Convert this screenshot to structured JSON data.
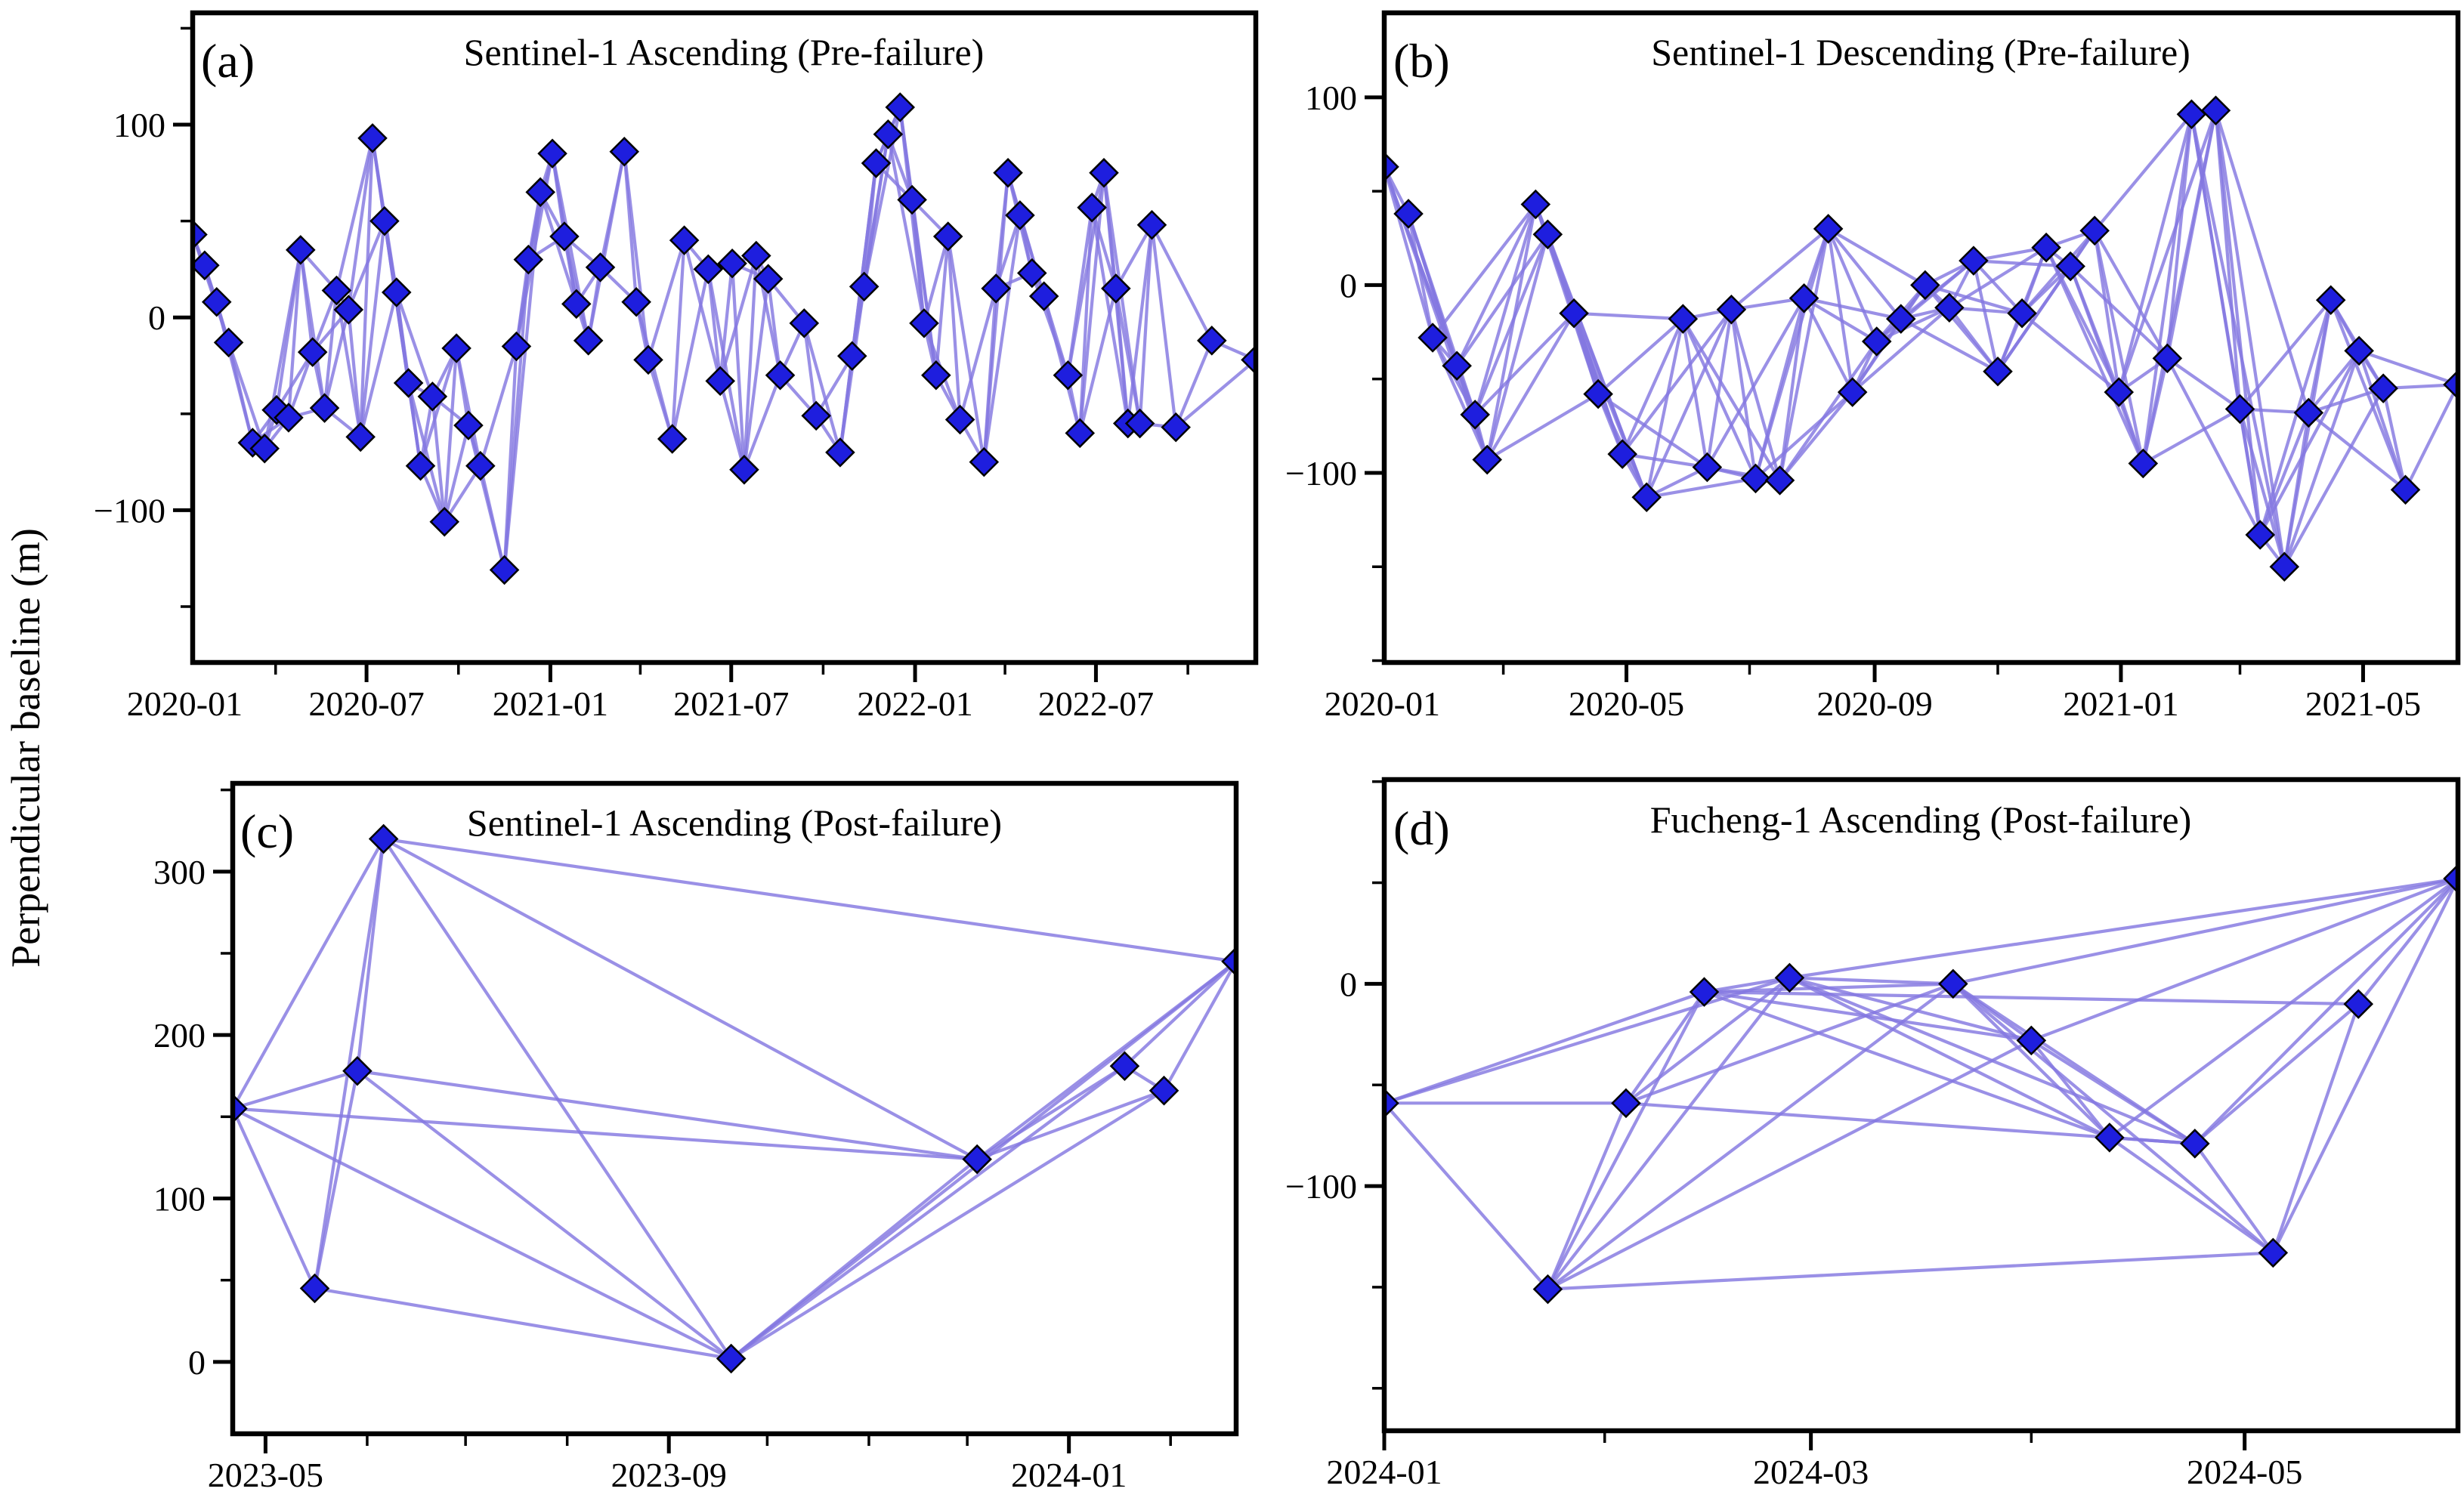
{
  "figure": {
    "y_axis_label": "Perpendicular baseline (m)"
  },
  "colors": {
    "background": "#ffffff",
    "frame": "#000000",
    "text": "#000000",
    "edge_line": "#8478e0",
    "marker_fill": "#1e1ede",
    "marker_edge": "#000000"
  },
  "chart_data": [
    {
      "type": "scatter",
      "panel_label": "(a)",
      "title": "Sentinel-1 Ascending (Pre-failure)",
      "x_range": [
        "2020-01-09",
        "2022-12-08"
      ],
      "y_range": [
        -179,
        158
      ],
      "x_ticks": [
        {
          "date": "2020-01-01",
          "label": "2020-01"
        },
        {
          "date": "2020-07-01",
          "label": "2020-07"
        },
        {
          "date": "2021-01-01",
          "label": "2021-01"
        },
        {
          "date": "2021-07-01",
          "label": "2021-07"
        },
        {
          "date": "2022-01-01",
          "label": "2022-01"
        },
        {
          "date": "2022-07-01",
          "label": "2022-07"
        }
      ],
      "x_minor_step_months": 3,
      "y_ticks": [
        100,
        0,
        -100
      ],
      "y_minor_step": 50,
      "edge_max_days": 40,
      "edge_min_next": 2,
      "points": [
        [
          "2020-01-09",
          43
        ],
        [
          "2020-01-21",
          27
        ],
        [
          "2020-02-02",
          8
        ],
        [
          "2020-02-14",
          -13
        ],
        [
          "2020-03-09",
          -65
        ],
        [
          "2020-03-21",
          -68
        ],
        [
          "2020-04-02",
          -48
        ],
        [
          "2020-04-14",
          -52
        ],
        [
          "2020-04-26",
          35
        ],
        [
          "2020-05-08",
          -18
        ],
        [
          "2020-05-20",
          -47
        ],
        [
          "2020-06-01",
          14
        ],
        [
          "2020-06-13",
          4
        ],
        [
          "2020-06-25",
          -62
        ],
        [
          "2020-07-07",
          93
        ],
        [
          "2020-07-19",
          50
        ],
        [
          "2020-07-31",
          13
        ],
        [
          "2020-08-12",
          -34
        ],
        [
          "2020-08-24",
          -77
        ],
        [
          "2020-09-05",
          -41
        ],
        [
          "2020-09-17",
          -106
        ],
        [
          "2020-09-29",
          -16
        ],
        [
          "2020-10-11",
          -56
        ],
        [
          "2020-10-23",
          -77
        ],
        [
          "2020-11-16",
          -131
        ],
        [
          "2020-11-28",
          -15
        ],
        [
          "2020-12-10",
          30
        ],
        [
          "2020-12-22",
          65
        ],
        [
          "2021-01-03",
          85
        ],
        [
          "2021-01-15",
          42
        ],
        [
          "2021-01-27",
          7
        ],
        [
          "2021-02-08",
          -12
        ],
        [
          "2021-02-20",
          26
        ],
        [
          "2021-03-16",
          86
        ],
        [
          "2021-03-28",
          8
        ],
        [
          "2021-04-09",
          -22
        ],
        [
          "2021-05-03",
          -63
        ],
        [
          "2021-05-15",
          40
        ],
        [
          "2021-06-08",
          25
        ],
        [
          "2021-06-20",
          -33
        ],
        [
          "2021-07-02",
          28
        ],
        [
          "2021-07-14",
          -79
        ],
        [
          "2021-07-26",
          32
        ],
        [
          "2021-08-07",
          20
        ],
        [
          "2021-08-19",
          -30
        ],
        [
          "2021-09-12",
          -3
        ],
        [
          "2021-09-24",
          -51
        ],
        [
          "2021-10-18",
          -70
        ],
        [
          "2021-10-30",
          -20
        ],
        [
          "2021-11-11",
          16
        ],
        [
          "2021-11-23",
          80
        ],
        [
          "2021-12-05",
          95
        ],
        [
          "2021-12-17",
          109
        ],
        [
          "2021-12-29",
          61
        ],
        [
          "2022-01-10",
          -3
        ],
        [
          "2022-01-22",
          -30
        ],
        [
          "2022-02-03",
          42
        ],
        [
          "2022-02-15",
          -53
        ],
        [
          "2022-03-11",
          -75
        ],
        [
          "2022-03-23",
          15
        ],
        [
          "2022-04-04",
          75
        ],
        [
          "2022-04-16",
          53
        ],
        [
          "2022-04-28",
          23
        ],
        [
          "2022-05-10",
          11
        ],
        [
          "2022-06-03",
          -30
        ],
        [
          "2022-06-15",
          -60
        ],
        [
          "2022-06-27",
          57
        ],
        [
          "2022-07-09",
          75
        ],
        [
          "2022-07-21",
          15
        ],
        [
          "2022-08-02",
          -55
        ],
        [
          "2022-08-14",
          -55
        ],
        [
          "2022-08-26",
          48
        ],
        [
          "2022-09-19",
          -57
        ],
        [
          "2022-10-25",
          -12
        ],
        [
          "2022-12-08",
          -22
        ]
      ]
    },
    {
      "type": "scatter",
      "panel_label": "(b)",
      "title": "Sentinel-1 Descending (Pre-failure)",
      "x_range": [
        "2020-01-02",
        "2021-06-17"
      ],
      "y_range": [
        -201,
        145
      ],
      "x_ticks": [
        {
          "date": "2020-01-01",
          "label": "2020-01"
        },
        {
          "date": "2020-05-01",
          "label": "2020-05"
        },
        {
          "date": "2020-09-01",
          "label": "2020-09"
        },
        {
          "date": "2021-01-01",
          "label": "2021-01"
        },
        {
          "date": "2021-05-01",
          "label": "2021-05"
        }
      ],
      "x_minor_step_months": 2,
      "y_ticks": [
        100,
        0,
        -100
      ],
      "y_minor_step": 50,
      "edge_max_days": 55,
      "edge_min_next": 2,
      "points": [
        [
          "2020-01-02",
          63
        ],
        [
          "2020-01-14",
          38
        ],
        [
          "2020-01-26",
          -28
        ],
        [
          "2020-02-07",
          -43
        ],
        [
          "2020-02-16",
          -69
        ],
        [
          "2020-02-22",
          -93
        ],
        [
          "2020-03-17",
          43
        ],
        [
          "2020-03-23",
          27
        ],
        [
          "2020-04-05",
          -15
        ],
        [
          "2020-04-17",
          -58
        ],
        [
          "2020-04-29",
          -90
        ],
        [
          "2020-05-11",
          -113
        ],
        [
          "2020-05-29",
          -18
        ],
        [
          "2020-06-10",
          -97
        ],
        [
          "2020-06-22",
          -13
        ],
        [
          "2020-07-04",
          -103
        ],
        [
          "2020-07-16",
          -104
        ],
        [
          "2020-07-28",
          -7
        ],
        [
          "2020-08-09",
          30
        ],
        [
          "2020-08-21",
          -57
        ],
        [
          "2020-09-02",
          -30
        ],
        [
          "2020-09-14",
          -18
        ],
        [
          "2020-09-26",
          0
        ],
        [
          "2020-10-08",
          -12
        ],
        [
          "2020-10-20",
          13
        ],
        [
          "2020-11-01",
          -46
        ],
        [
          "2020-11-13",
          -15
        ],
        [
          "2020-11-25",
          20
        ],
        [
          "2020-12-07",
          10
        ],
        [
          "2020-12-19",
          29
        ],
        [
          "2020-12-31",
          -57
        ],
        [
          "2021-01-12",
          -95
        ],
        [
          "2021-01-24",
          -39
        ],
        [
          "2021-02-05",
          91
        ],
        [
          "2021-02-17",
          93
        ],
        [
          "2021-03-01",
          -66
        ],
        [
          "2021-03-11",
          -133
        ],
        [
          "2021-03-23",
          -150
        ],
        [
          "2021-04-04",
          -68
        ],
        [
          "2021-04-15",
          -8
        ],
        [
          "2021-04-29",
          -35
        ],
        [
          "2021-05-11",
          -55
        ],
        [
          "2021-05-22",
          -109
        ],
        [
          "2021-06-17",
          -53
        ]
      ]
    },
    {
      "type": "scatter",
      "panel_label": "(c)",
      "title": "Sentinel-1 Ascending (Post-failure)",
      "x_range": [
        "2023-04-21",
        "2024-02-21"
      ],
      "y_range": [
        -44,
        354
      ],
      "x_ticks": [
        {
          "date": "2023-05-01",
          "label": "2023-05"
        },
        {
          "date": "2023-09-01",
          "label": "2023-09"
        },
        {
          "date": "2024-01-01",
          "label": "2024-01"
        }
      ],
      "x_minor_step_months": 1,
      "y_ticks": [
        300,
        200,
        100,
        0
      ],
      "y_minor_step": 50,
      "points": [
        [
          "2023-04-21",
          155
        ],
        [
          "2023-05-16",
          45
        ],
        [
          "2023-05-29",
          178
        ],
        [
          "2023-06-06",
          320
        ],
        [
          "2023-09-20",
          2
        ],
        [
          "2023-12-04",
          124
        ],
        [
          "2024-01-18",
          181
        ],
        [
          "2024-01-30",
          166
        ],
        [
          "2024-02-21",
          245
        ]
      ],
      "edges": [
        [
          0,
          1
        ],
        [
          0,
          2
        ],
        [
          0,
          3
        ],
        [
          0,
          4
        ],
        [
          0,
          5
        ],
        [
          1,
          2
        ],
        [
          1,
          3
        ],
        [
          1,
          4
        ],
        [
          2,
          3
        ],
        [
          2,
          4
        ],
        [
          2,
          5
        ],
        [
          3,
          4
        ],
        [
          3,
          5
        ],
        [
          3,
          8
        ],
        [
          4,
          5
        ],
        [
          4,
          6
        ],
        [
          4,
          7
        ],
        [
          4,
          8
        ],
        [
          5,
          6
        ],
        [
          5,
          7
        ],
        [
          5,
          8
        ],
        [
          6,
          7
        ],
        [
          6,
          8
        ],
        [
          7,
          8
        ]
      ]
    },
    {
      "type": "scatter",
      "panel_label": "(d)",
      "title": "Fucheng-1 Ascending (Post-failure)",
      "x_range": [
        "2024-01-01",
        "2024-05-31"
      ],
      "y_range": [
        -221,
        101
      ],
      "x_ticks": [
        {
          "date": "2024-01-01",
          "label": "2024-01"
        },
        {
          "date": "2024-03-01",
          "label": "2024-03"
        },
        {
          "date": "2024-05-01",
          "label": "2024-05"
        }
      ],
      "x_minor_step_months": 1,
      "y_ticks": [
        0,
        -100
      ],
      "y_minor_step": 50,
      "points": [
        [
          "2024-01-01",
          -59
        ],
        [
          "2024-01-24",
          -151
        ],
        [
          "2024-02-04",
          -59
        ],
        [
          "2024-02-15",
          -4
        ],
        [
          "2024-02-27",
          3
        ],
        [
          "2024-03-21",
          0
        ],
        [
          "2024-04-01",
          -28
        ],
        [
          "2024-04-12",
          -76
        ],
        [
          "2024-04-24",
          -79
        ],
        [
          "2024-05-05",
          -133
        ],
        [
          "2024-05-17",
          -10
        ],
        [
          "2024-05-31",
          52
        ]
      ],
      "edges": [
        [
          0,
          1
        ],
        [
          0,
          2
        ],
        [
          0,
          3
        ],
        [
          0,
          4
        ],
        [
          1,
          2
        ],
        [
          1,
          3
        ],
        [
          1,
          4
        ],
        [
          1,
          5
        ],
        [
          1,
          6
        ],
        [
          1,
          9
        ],
        [
          2,
          3
        ],
        [
          2,
          4
        ],
        [
          2,
          5
        ],
        [
          2,
          8
        ],
        [
          3,
          4
        ],
        [
          3,
          5
        ],
        [
          3,
          6
        ],
        [
          3,
          7
        ],
        [
          3,
          10
        ],
        [
          4,
          5
        ],
        [
          4,
          6
        ],
        [
          4,
          7
        ],
        [
          4,
          8
        ],
        [
          4,
          11
        ],
        [
          5,
          6
        ],
        [
          5,
          7
        ],
        [
          5,
          8
        ],
        [
          5,
          9
        ],
        [
          5,
          11
        ],
        [
          6,
          7
        ],
        [
          6,
          8
        ],
        [
          6,
          11
        ],
        [
          7,
          8
        ],
        [
          7,
          9
        ],
        [
          7,
          11
        ],
        [
          8,
          9
        ],
        [
          8,
          10
        ],
        [
          8,
          11
        ],
        [
          9,
          10
        ],
        [
          9,
          11
        ],
        [
          10,
          11
        ]
      ]
    }
  ]
}
